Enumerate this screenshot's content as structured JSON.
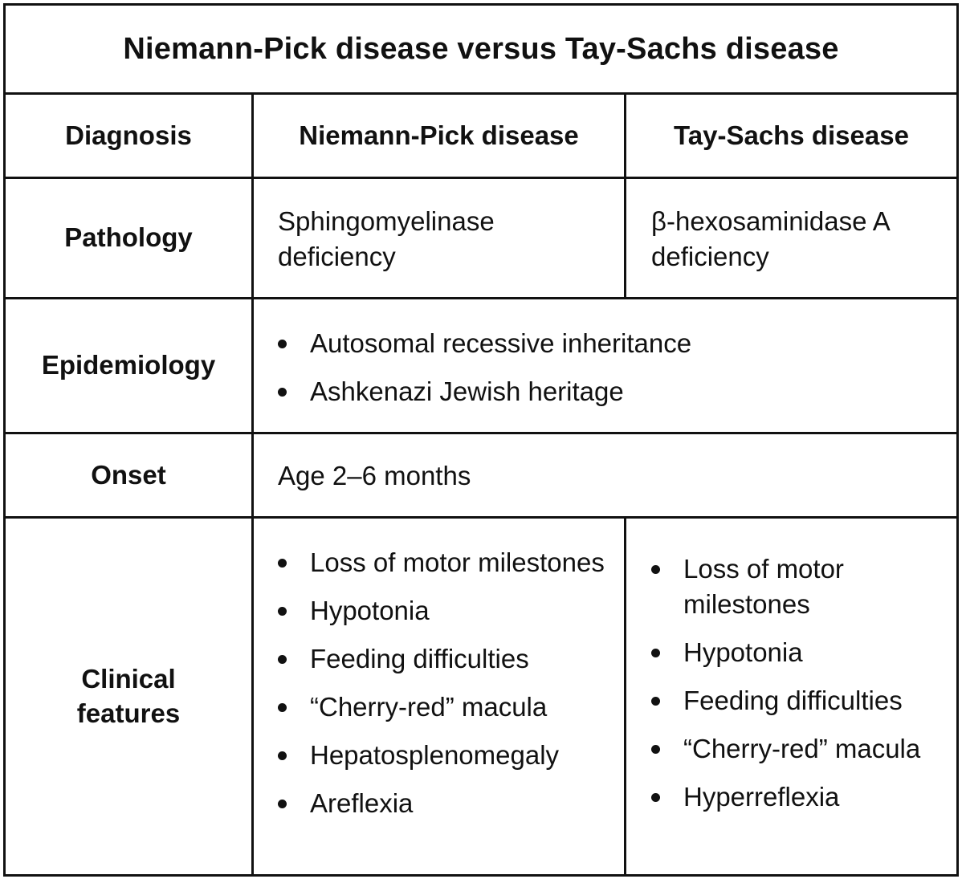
{
  "title": "Niemann-Pick disease versus Tay-Sachs disease",
  "headers": {
    "diagnosis": "Diagnosis",
    "niemann_pick": "Niemann-Pick disease",
    "tay_sachs": "Tay-Sachs disease"
  },
  "rows": {
    "pathology": {
      "label": "Pathology",
      "niemann_pick": "Sphingomyelinase deficiency",
      "tay_sachs": "β-hexosaminidase A deficiency"
    },
    "epidemiology": {
      "label": "Epidemiology",
      "items": [
        "Autosomal recessive inheritance",
        "Ashkenazi Jewish heritage"
      ]
    },
    "onset": {
      "label": "Onset",
      "value": "Age 2–6 months"
    },
    "clinical_features": {
      "label": "Clinical features",
      "niemann_pick": [
        "Loss of motor milestones",
        "Hypotonia",
        "Feeding difficulties",
        "“Cherry-red” macula",
        "Hepatosplenomegaly",
        "Areflexia"
      ],
      "tay_sachs": [
        "Loss of motor milestones",
        "Hypotonia",
        "Feeding difficulties",
        "“Cherry-red” macula",
        "Hyperreflexia"
      ]
    }
  }
}
